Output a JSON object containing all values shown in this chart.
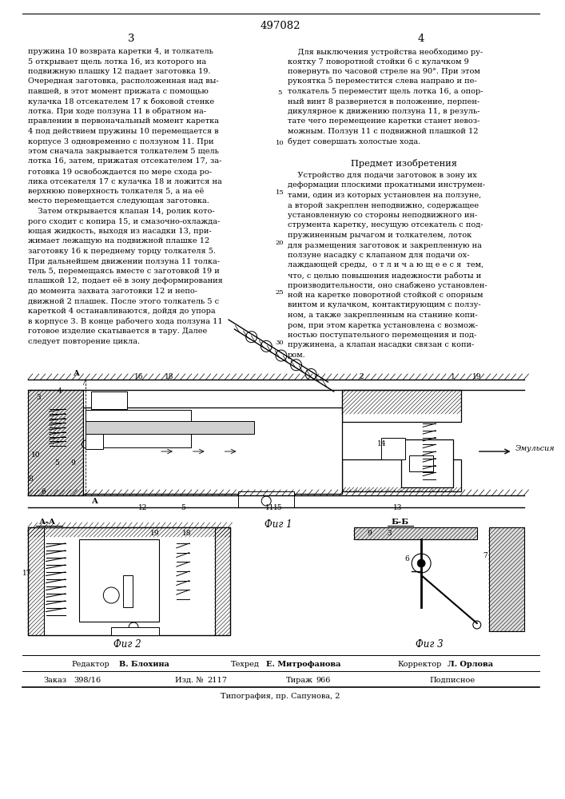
{
  "patent_number": "497082",
  "page_left": "3",
  "page_right": "4",
  "background_color": "#ffffff",
  "text_color": "#000000",
  "left_col_lines": [
    "пружина 10 возврата каретки 4, и толкатель",
    "5 открывает щель лотка 16, из которого на",
    "подвижную плашку 12 падает заготовка 19.",
    "Очередная заготовка, расположенная над вы-",
    "павшей, в этот момент прижата с помощью",
    "кулачка 18 отсекателем 17 к боковой стенке",
    "лотка. При ходе ползуна 11 в обратном на-",
    "правлении в первоначальный момент каретка",
    "4 под действием пружины 10 перемещается в",
    "корпусе 3 одновременно с ползуном 11. При",
    "этом сначала закрывается толкателем 5 щель",
    "лотка 16, затем, прижатая отсекателем 17, за-",
    "готовка 19 освобождается по мере схода ро-",
    "лика отсекателя 17 с кулачка 18 и ложится на",
    "верхнюю поверхность толкателя 5, а на её",
    "место перемещается следующая заготовка.",
    "    Затем открывается клапан 14, ролик кото-",
    "рого сходит с копира 15, и смазочно-охлажда-",
    "ющая жидкость, выходя из насадки 13, при-",
    "жимает лежащую на подвижной плашке 12",
    "заготовку 16 к переднему торцу толкателя 5.",
    "При дальнейшем движении ползуна 11 толка-",
    "тель 5, перемещаясь вместе с заготовкой 19 и",
    "плашкой 12, подает её в зону деформирования",
    "до момента захвата заготовки 12 и непо-",
    "движной 2 плашек. После этого толкатель 5 с",
    "кареткой 4 останавливаются, дойдя до упора",
    "в корпусе 3. В конце рабочего хода ползуна 11",
    "готовое изделие скатывается в тару. Далее",
    "следует повторение цикла."
  ],
  "right_col_top": [
    "    Для выключения устройства необходимо ру-",
    "коятку 7 поворотной стойки 6 с кулачком 9",
    "повернуть по часовой стреле на 90°. При этом",
    "рукоятка 5 переместится слева направо и пе-",
    "толкатель 5 переместит щель лотка 16, а опор-",
    "ный винт 8 развернется в положение, перпен-",
    "дикулярное к движению ползуна 11, в резуль-",
    "тате чего перемещение каретки станет невоз-",
    "можным. Ползун 11 с подвижной плашкой 12",
    "будет совершать холостые хода."
  ],
  "predmet_header": "Предмет изобретения",
  "predmet_lines": [
    "    Устройство для подачи заготовок в зону их",
    "деформации плоскими прокатными инструмен-",
    "тами, один из которых установлен на ползуне,",
    "а второй закреплен неподвижно, содержащее",
    "установленную со стороны неподвижного ин-",
    "струмента каретку, несущую отсекатель с под-",
    "пружиненным рычагом и толкателем, лоток",
    "для размещения заготовок и закрепленную на",
    "ползуне насадку с клапаном для подачи ох-",
    "лаждающей среды,  о т л и ч а ю щ е е с я  тем,",
    "что, с целью повышения надежности работы и",
    "производительности, оно снабжено установлен-",
    "ной на каретке поворотной стойкой с опорным",
    "винтом и кулачком, контактирующим с ползу-",
    "ном, а также закрепленным на станине копи-",
    "ром, при этом каретка установлена с возмож-",
    "ностью поступательного перемещения и под-",
    "пружинена, а клапан насадки связан с копи-",
    "ром."
  ],
  "line_numbers_right": [
    [
      5,
      "5"
    ],
    [
      10,
      "10"
    ],
    [
      15,
      "15"
    ],
    [
      20,
      "20"
    ],
    [
      25,
      "25"
    ],
    [
      30,
      "30"
    ]
  ],
  "fig1_label": "Фиг 1",
  "fig2_label": "Фиг 2",
  "fig3_label": "Фиг 3",
  "section_aa": "А-А",
  "section_bb": "Б-Б",
  "emulsion_label": "Эмульсия",
  "editor_line_parts": [
    [
      "Редактор",
      "В. Блохина"
    ],
    [
      "Техред",
      "Е. Митрофанова"
    ],
    [
      "Корректор",
      "Л. Орлова"
    ]
  ],
  "order_line_parts": [
    [
      "Заказ",
      "398/16"
    ],
    [
      "Изд. №",
      "2117"
    ],
    [
      "Тираж",
      "966"
    ],
    [
      "",
      "Подписное"
    ]
  ],
  "typografia_line": "Типография, пр. Сапунова, 2"
}
